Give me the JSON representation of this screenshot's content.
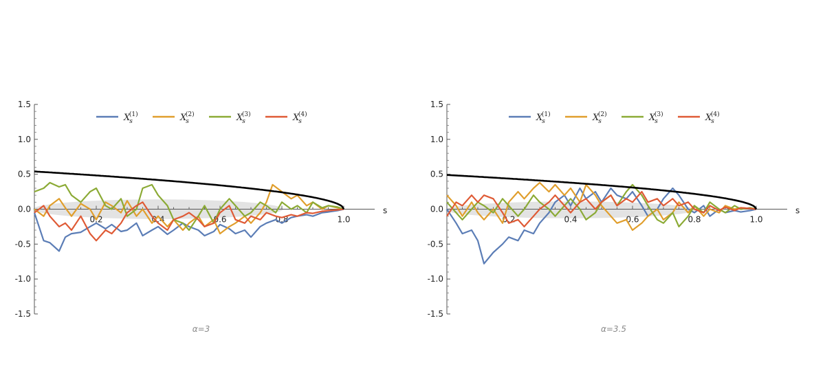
{
  "chart_data": [
    {
      "type": "line",
      "caption": "α=3",
      "xlabel": "s",
      "ylabel": "",
      "xlim": [
        0,
        1.1
      ],
      "ylim": [
        -1.5,
        1.5
      ],
      "xticks": [
        0.2,
        0.4,
        0.6,
        0.8,
        1.0
      ],
      "xtick_labels": [
        "0.2",
        "0.4",
        "0.6",
        "0.8",
        "1.0"
      ],
      "yticks": [
        1.5,
        1.0,
        0.5,
        0.0,
        -0.5,
        -1.0,
        -1.5
      ],
      "ytick_labels": [
        "1.5",
        "1.0",
        "0.5",
        "0.0",
        "-0.5",
        "-1.0",
        "-1.5"
      ],
      "legend_position": "top",
      "legend": [
        {
          "base": "X",
          "sub": "s",
          "sup": "(1)",
          "color": "#5B7DB6"
        },
        {
          "base": "X",
          "sub": "s",
          "sup": "(2)",
          "color": "#E09E2C"
        },
        {
          "base": "X",
          "sub": "s",
          "sup": "(3)",
          "color": "#8BAA35"
        },
        {
          "base": "X",
          "sub": "s",
          "sup": "(4)",
          "color": "#DF5A35"
        }
      ],
      "boundary": {
        "color": "#000000",
        "a": 0.54,
        "exponent": 0.5
      },
      "band": {
        "color": "#d9d9d9",
        "center_y": 0.0,
        "half_height": 0.14
      },
      "series": [
        {
          "color": "#5B7DB6",
          "x": [
            0.0,
            0.03,
            0.05,
            0.08,
            0.1,
            0.12,
            0.15,
            0.18,
            0.2,
            0.23,
            0.25,
            0.28,
            0.3,
            0.33,
            0.35,
            0.38,
            0.4,
            0.43,
            0.45,
            0.48,
            0.5,
            0.53,
            0.55,
            0.58,
            0.6,
            0.63,
            0.65,
            0.68,
            0.7,
            0.73,
            0.75,
            0.78,
            0.8,
            0.83,
            0.85,
            0.88,
            0.9,
            0.93,
            0.95,
            0.98,
            1.0
          ],
          "y": [
            -0.05,
            -0.45,
            -0.48,
            -0.6,
            -0.4,
            -0.35,
            -0.33,
            -0.25,
            -0.2,
            -0.28,
            -0.22,
            -0.32,
            -0.3,
            -0.2,
            -0.38,
            -0.3,
            -0.25,
            -0.36,
            -0.3,
            -0.2,
            -0.25,
            -0.3,
            -0.38,
            -0.32,
            -0.22,
            -0.28,
            -0.35,
            -0.3,
            -0.4,
            -0.25,
            -0.2,
            -0.15,
            -0.2,
            -0.12,
            -0.1,
            -0.08,
            -0.1,
            -0.05,
            -0.04,
            -0.02,
            0.0
          ]
        },
        {
          "color": "#E09E2C",
          "x": [
            0.0,
            0.03,
            0.05,
            0.08,
            0.1,
            0.12,
            0.15,
            0.18,
            0.2,
            0.23,
            0.25,
            0.28,
            0.3,
            0.33,
            0.35,
            0.38,
            0.4,
            0.43,
            0.45,
            0.48,
            0.5,
            0.53,
            0.55,
            0.58,
            0.6,
            0.63,
            0.65,
            0.68,
            0.7,
            0.73,
            0.75,
            0.77,
            0.8,
            0.83,
            0.85,
            0.88,
            0.9,
            0.93,
            0.95,
            0.98,
            1.0
          ],
          "y": [
            0.0,
            -0.1,
            0.05,
            0.15,
            0.02,
            -0.1,
            0.08,
            0.0,
            -0.15,
            0.1,
            0.05,
            -0.05,
            0.12,
            -0.1,
            0.0,
            -0.2,
            -0.1,
            -0.25,
            -0.15,
            -0.3,
            -0.2,
            -0.1,
            -0.25,
            -0.15,
            -0.35,
            -0.25,
            -0.2,
            -0.1,
            -0.2,
            -0.05,
            0.1,
            0.35,
            0.25,
            0.15,
            0.2,
            0.05,
            0.1,
            0.0,
            0.05,
            0.02,
            0.0
          ]
        },
        {
          "color": "#8BAA35",
          "x": [
            0.0,
            0.03,
            0.05,
            0.08,
            0.1,
            0.12,
            0.15,
            0.18,
            0.2,
            0.23,
            0.25,
            0.28,
            0.3,
            0.33,
            0.35,
            0.38,
            0.4,
            0.43,
            0.45,
            0.48,
            0.5,
            0.53,
            0.55,
            0.58,
            0.6,
            0.63,
            0.65,
            0.68,
            0.7,
            0.73,
            0.75,
            0.78,
            0.8,
            0.83,
            0.85,
            0.88,
            0.9,
            0.93,
            0.95,
            0.98,
            1.0
          ],
          "y": [
            0.25,
            0.3,
            0.38,
            0.32,
            0.35,
            0.2,
            0.1,
            0.25,
            0.3,
            0.05,
            0.0,
            0.15,
            -0.1,
            0.0,
            0.3,
            0.35,
            0.2,
            0.05,
            -0.15,
            -0.2,
            -0.3,
            -0.1,
            0.05,
            -0.2,
            0.0,
            0.15,
            0.05,
            -0.1,
            -0.05,
            0.1,
            0.05,
            -0.05,
            0.1,
            0.0,
            0.05,
            -0.05,
            0.1,
            0.02,
            0.05,
            0.03,
            0.0
          ]
        },
        {
          "color": "#DF5A35",
          "x": [
            0.0,
            0.03,
            0.05,
            0.08,
            0.1,
            0.12,
            0.15,
            0.18,
            0.2,
            0.23,
            0.25,
            0.28,
            0.3,
            0.33,
            0.35,
            0.38,
            0.4,
            0.43,
            0.45,
            0.48,
            0.5,
            0.53,
            0.55,
            0.58,
            0.6,
            0.63,
            0.65,
            0.68,
            0.7,
            0.73,
            0.75,
            0.78,
            0.8,
            0.83,
            0.85,
            0.88,
            0.9,
            0.93,
            0.95,
            0.98,
            1.0
          ],
          "y": [
            -0.05,
            0.05,
            -0.1,
            -0.25,
            -0.2,
            -0.3,
            -0.1,
            -0.35,
            -0.45,
            -0.3,
            -0.35,
            -0.2,
            -0.05,
            0.05,
            0.1,
            -0.1,
            -0.2,
            -0.3,
            -0.15,
            -0.1,
            -0.05,
            -0.15,
            -0.25,
            -0.2,
            -0.05,
            0.05,
            -0.15,
            -0.2,
            -0.1,
            -0.15,
            -0.05,
            -0.1,
            -0.12,
            -0.08,
            -0.1,
            -0.05,
            -0.06,
            -0.03,
            -0.02,
            -0.01,
            0.0
          ]
        }
      ]
    },
    {
      "type": "line",
      "caption": "α=3.5",
      "xlabel": "s",
      "ylabel": "",
      "xlim": [
        0,
        1.1
      ],
      "ylim": [
        -1.5,
        1.5
      ],
      "xticks": [
        0.2,
        0.4,
        0.6,
        0.8,
        1.0
      ],
      "xtick_labels": [
        "0.2",
        "0.4",
        "0.6",
        "0.8",
        "1.0"
      ],
      "yticks": [
        1.5,
        1.0,
        0.5,
        0.0,
        -0.5,
        -1.0,
        -1.5
      ],
      "ytick_labels": [
        "1.5",
        "1.0",
        "0.5",
        "0.0",
        "-0.5",
        "-1.0",
        "-1.5"
      ],
      "legend_position": "top",
      "legend": [
        {
          "base": "X",
          "sub": "s",
          "sup": "(1)",
          "color": "#5B7DB6"
        },
        {
          "base": "X",
          "sub": "s",
          "sup": "(2)",
          "color": "#E09E2C"
        },
        {
          "base": "X",
          "sub": "s",
          "sup": "(3)",
          "color": "#8BAA35"
        },
        {
          "base": "X",
          "sub": "s",
          "sup": "(4)",
          "color": "#DF5A35"
        }
      ],
      "boundary": {
        "color": "#000000",
        "a": 0.49,
        "exponent": 0.5
      },
      "band": {
        "color": "#d9d9d9",
        "center_y": -0.01,
        "half_height": 0.12
      },
      "series": [
        {
          "color": "#5B7DB6",
          "x": [
            0.0,
            0.03,
            0.05,
            0.08,
            0.1,
            0.12,
            0.15,
            0.18,
            0.2,
            0.23,
            0.25,
            0.28,
            0.3,
            0.33,
            0.35,
            0.38,
            0.4,
            0.43,
            0.45,
            0.48,
            0.5,
            0.53,
            0.55,
            0.58,
            0.6,
            0.63,
            0.65,
            0.68,
            0.7,
            0.73,
            0.75,
            0.78,
            0.8,
            0.83,
            0.85,
            0.88,
            0.9,
            0.93,
            0.95,
            0.98,
            1.0
          ],
          "y": [
            0.0,
            -0.2,
            -0.35,
            -0.3,
            -0.45,
            -0.78,
            -0.62,
            -0.5,
            -0.4,
            -0.45,
            -0.3,
            -0.35,
            -0.2,
            -0.05,
            0.1,
            0.2,
            0.05,
            0.3,
            0.15,
            0.25,
            0.1,
            0.3,
            0.2,
            0.15,
            0.25,
            0.05,
            -0.1,
            0.0,
            0.15,
            0.3,
            0.2,
            0.0,
            -0.05,
            0.05,
            -0.1,
            0.0,
            -0.05,
            -0.02,
            -0.04,
            -0.02,
            0.0
          ]
        },
        {
          "color": "#E09E2C",
          "x": [
            0.0,
            0.03,
            0.05,
            0.08,
            0.1,
            0.12,
            0.15,
            0.18,
            0.2,
            0.23,
            0.25,
            0.28,
            0.3,
            0.33,
            0.35,
            0.38,
            0.4,
            0.43,
            0.45,
            0.48,
            0.5,
            0.53,
            0.55,
            0.58,
            0.6,
            0.63,
            0.65,
            0.68,
            0.7,
            0.73,
            0.75,
            0.78,
            0.8,
            0.83,
            0.85,
            0.88,
            0.9,
            0.93,
            0.95,
            0.98,
            1.0
          ],
          "y": [
            0.2,
            0.05,
            -0.1,
            0.1,
            -0.05,
            -0.15,
            0.0,
            -0.2,
            0.1,
            0.25,
            0.15,
            0.3,
            0.38,
            0.25,
            0.35,
            0.2,
            0.3,
            0.1,
            0.35,
            0.2,
            0.05,
            -0.1,
            -0.2,
            -0.15,
            -0.3,
            -0.2,
            -0.1,
            0.0,
            -0.15,
            -0.05,
            0.1,
            -0.05,
            0.05,
            -0.1,
            0.0,
            -0.05,
            0.05,
            0.0,
            0.02,
            0.01,
            0.0
          ]
        },
        {
          "color": "#8BAA35",
          "x": [
            0.0,
            0.03,
            0.05,
            0.08,
            0.1,
            0.12,
            0.15,
            0.18,
            0.2,
            0.23,
            0.25,
            0.28,
            0.3,
            0.33,
            0.35,
            0.38,
            0.4,
            0.43,
            0.45,
            0.48,
            0.5,
            0.53,
            0.55,
            0.58,
            0.6,
            0.63,
            0.65,
            0.68,
            0.7,
            0.73,
            0.75,
            0.78,
            0.8,
            0.83,
            0.85,
            0.88,
            0.9,
            0.93,
            0.95,
            0.98,
            1.0
          ],
          "y": [
            0.1,
            -0.05,
            -0.15,
            0.0,
            0.1,
            0.05,
            -0.05,
            0.15,
            0.05,
            -0.1,
            0.0,
            0.2,
            0.1,
            0.0,
            -0.1,
            0.05,
            0.15,
            0.0,
            -0.15,
            -0.05,
            0.1,
            0.2,
            0.05,
            0.25,
            0.35,
            0.2,
            0.05,
            -0.15,
            -0.2,
            -0.05,
            -0.25,
            -0.1,
            0.05,
            -0.05,
            0.1,
            0.0,
            -0.05,
            0.05,
            0.0,
            0.02,
            0.0
          ]
        },
        {
          "color": "#DF5A35",
          "x": [
            0.0,
            0.03,
            0.05,
            0.08,
            0.1,
            0.12,
            0.15,
            0.18,
            0.2,
            0.23,
            0.25,
            0.28,
            0.3,
            0.33,
            0.35,
            0.38,
            0.4,
            0.43,
            0.45,
            0.48,
            0.5,
            0.53,
            0.55,
            0.58,
            0.6,
            0.63,
            0.65,
            0.68,
            0.7,
            0.73,
            0.75,
            0.78,
            0.8,
            0.83,
            0.85,
            0.88,
            0.9,
            0.93,
            0.95,
            0.98,
            1.0
          ],
          "y": [
            -0.1,
            0.1,
            0.05,
            0.2,
            0.1,
            0.2,
            0.15,
            -0.05,
            -0.2,
            -0.15,
            -0.25,
            -0.1,
            0.0,
            0.1,
            0.2,
            0.05,
            -0.05,
            0.1,
            0.15,
            0.0,
            0.1,
            0.2,
            0.05,
            0.15,
            0.1,
            0.25,
            0.1,
            0.15,
            0.05,
            0.15,
            0.05,
            0.1,
            0.0,
            -0.05,
            0.05,
            -0.02,
            0.03,
            -0.02,
            0.02,
            0.01,
            0.0
          ]
        }
      ]
    }
  ]
}
